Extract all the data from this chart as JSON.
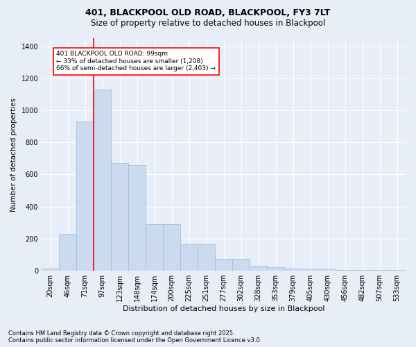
{
  "title1": "401, BLACKPOOL OLD ROAD, BLACKPOOL, FY3 7LT",
  "title2": "Size of property relative to detached houses in Blackpool",
  "xlabel": "Distribution of detached houses by size in Blackpool",
  "ylabel": "Number of detached properties",
  "footnote": "Contains HM Land Registry data © Crown copyright and database right 2025.\nContains public sector information licensed under the Open Government Licence v3.0.",
  "bar_labels": [
    "20sqm",
    "46sqm",
    "71sqm",
    "97sqm",
    "123sqm",
    "148sqm",
    "174sqm",
    "200sqm",
    "225sqm",
    "251sqm",
    "277sqm",
    "302sqm",
    "328sqm",
    "353sqm",
    "379sqm",
    "405sqm",
    "430sqm",
    "456sqm",
    "482sqm",
    "507sqm",
    "533sqm"
  ],
  "bar_values": [
    15,
    230,
    930,
    1130,
    670,
    660,
    290,
    290,
    165,
    165,
    75,
    75,
    30,
    20,
    15,
    10,
    10,
    5,
    5,
    3,
    3
  ],
  "bar_color": "#ccdaf0",
  "bar_edge_color": "#9ab8db",
  "vline_x": 2.5,
  "vline_color": "red",
  "annotation_text": "401 BLACKPOOL OLD ROAD: 99sqm\n← 33% of detached houses are smaller (1,208)\n66% of semi-detached houses are larger (2,403) →",
  "ylim": [
    0,
    1450
  ],
  "yticks": [
    0,
    200,
    400,
    600,
    800,
    1000,
    1200,
    1400
  ],
  "bg_color": "#e8eef8",
  "plot_bg_color": "#e8eef8",
  "grid_color": "white",
  "title1_fontsize": 9,
  "title2_fontsize": 8.5,
  "xlabel_fontsize": 8,
  "ylabel_fontsize": 7.5,
  "tick_fontsize": 7,
  "footnote_fontsize": 6
}
